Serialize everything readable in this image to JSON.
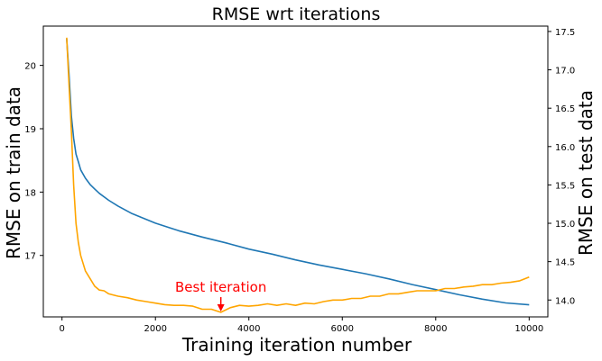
{
  "chart_data": {
    "type": "line",
    "title": "RMSE wrt iterations",
    "xlabel": "Training iteration number",
    "ylabel_left": "RMSE on train data",
    "ylabel_right": "RMSE on test data",
    "xlim": [
      -400,
      10400
    ],
    "ylim_left": [
      16.03,
      20.62
    ],
    "ylim_right": [
      13.78,
      17.57
    ],
    "x_ticks": [
      0,
      2000,
      4000,
      6000,
      8000,
      10000
    ],
    "y_ticks_left": [
      17,
      18,
      19,
      20
    ],
    "y_ticks_right": [
      14.0,
      14.5,
      15.0,
      15.5,
      16.0,
      16.5,
      17.0,
      17.5
    ],
    "grid": false,
    "series": [
      {
        "axis": "left",
        "color": "#1f77b4",
        "x": [
          100,
          150,
          200,
          250,
          300,
          350,
          400,
          500,
          600,
          700,
          800,
          1000,
          1200,
          1500,
          2000,
          2500,
          3000,
          3500,
          4000,
          4500,
          5000,
          5500,
          6000,
          6500,
          7000,
          7500,
          8000,
          8500,
          9000,
          9500,
          10000
        ],
        "y": [
          20.42,
          19.85,
          19.2,
          18.85,
          18.6,
          18.48,
          18.35,
          18.22,
          18.12,
          18.05,
          17.98,
          17.87,
          17.78,
          17.66,
          17.51,
          17.39,
          17.29,
          17.2,
          17.1,
          17.02,
          16.93,
          16.85,
          16.78,
          16.71,
          16.63,
          16.54,
          16.46,
          16.38,
          16.31,
          16.25,
          16.22
        ]
      },
      {
        "axis": "right",
        "color": "#ffa500",
        "x": [
          100,
          150,
          200,
          250,
          300,
          350,
          400,
          500,
          600,
          700,
          800,
          900,
          1000,
          1200,
          1400,
          1600,
          1800,
          2000,
          2200,
          2400,
          2600,
          2800,
          3000,
          3200,
          3400,
          3600,
          3800,
          4000,
          4200,
          4400,
          4600,
          4800,
          5000,
          5200,
          5400,
          5600,
          5800,
          6000,
          6200,
          6400,
          6600,
          6800,
          7000,
          7200,
          7400,
          7600,
          7800,
          8000,
          8200,
          8400,
          8600,
          8800,
          9000,
          9200,
          9400,
          9600,
          9800,
          10000
        ],
        "y": [
          17.42,
          16.8,
          16.2,
          15.5,
          15.0,
          14.75,
          14.58,
          14.38,
          14.28,
          14.18,
          14.13,
          14.12,
          14.08,
          14.05,
          14.03,
          14.0,
          13.98,
          13.96,
          13.94,
          13.93,
          13.93,
          13.92,
          13.88,
          13.88,
          13.84,
          13.9,
          13.93,
          13.92,
          13.93,
          13.95,
          13.93,
          13.95,
          13.93,
          13.96,
          13.95,
          13.98,
          14.0,
          14.0,
          14.02,
          14.02,
          14.05,
          14.05,
          14.08,
          14.08,
          14.1,
          14.12,
          14.12,
          14.12,
          14.15,
          14.15,
          14.17,
          14.18,
          14.2,
          14.2,
          14.22,
          14.23,
          14.25,
          14.3
        ]
      }
    ],
    "annotations": [
      {
        "text": "Best iteration",
        "x": 3400,
        "y_right": 13.85,
        "color": "#ff0000"
      }
    ]
  }
}
